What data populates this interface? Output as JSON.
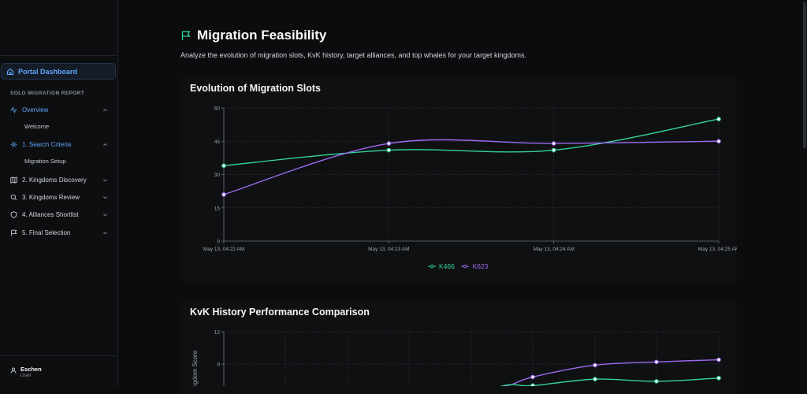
{
  "sidebar": {
    "portal_label": "Portal Dashboard",
    "section_label": "SOLO MIGRATION REPORT",
    "items": [
      {
        "label": "Overview",
        "icon": "activity-icon"
      },
      {
        "label": "1. Search Criteria",
        "icon": "gear-icon"
      },
      {
        "label": "2. Kingdoms Discovery",
        "icon": "map-icon"
      },
      {
        "label": "3. Kingdoms Review",
        "icon": "search-icon"
      },
      {
        "label": "4. Alliances Shortlist",
        "icon": "shield-icon"
      },
      {
        "label": "5. Final Selection",
        "icon": "flag-icon"
      }
    ],
    "sub_items": {
      "overview": "Welcome",
      "search": "Migration Setup"
    },
    "user": {
      "name": "Eschen",
      "role": "User"
    }
  },
  "header": {
    "title": "Migration Feasibility",
    "subtitle": "Analyze the evolution of migration slots, KvK history, target alliances, and top whales for your target kingdoms."
  },
  "colors": {
    "accent": "#60a5fa",
    "k466": "#34d399",
    "k623": "#9d6bf2"
  },
  "charts": {
    "slots_title": "Evolution of Migration Slots",
    "kvk_title": "KvK History Performance Comparison"
  },
  "chart_data": [
    {
      "type": "line",
      "title": "Evolution of Migration Slots",
      "categories": [
        "May 13, 04:22 AM",
        "May 13, 04:23 AM",
        "May 13, 04:24 AM",
        "May 13, 04:25 AM"
      ],
      "ylim": [
        0,
        60
      ],
      "yticks": [
        0,
        15,
        30,
        45,
        60
      ],
      "grid": true,
      "legend": "bottom-center",
      "series": [
        {
          "name": "K466",
          "color": "#34d399",
          "values": [
            34,
            41,
            41,
            55
          ]
        },
        {
          "name": "K623",
          "color": "#9d6bf2",
          "values": [
            21,
            44,
            44,
            45
          ]
        }
      ]
    },
    {
      "type": "line",
      "title": "KvK History Performance Comparison",
      "ylabel": "Kingdom Score",
      "ylim": [
        0,
        12
      ],
      "yticks": [
        9,
        12
      ],
      "grid": true,
      "series": [
        {
          "name": "K623",
          "color": "#9d6bf2",
          "values": [
            7.8,
            8.9,
            9.2,
            9.4
          ]
        },
        {
          "name": "K466",
          "color": "#34d399",
          "values": [
            7.0,
            7.6,
            7.4,
            7.7
          ]
        }
      ]
    }
  ]
}
